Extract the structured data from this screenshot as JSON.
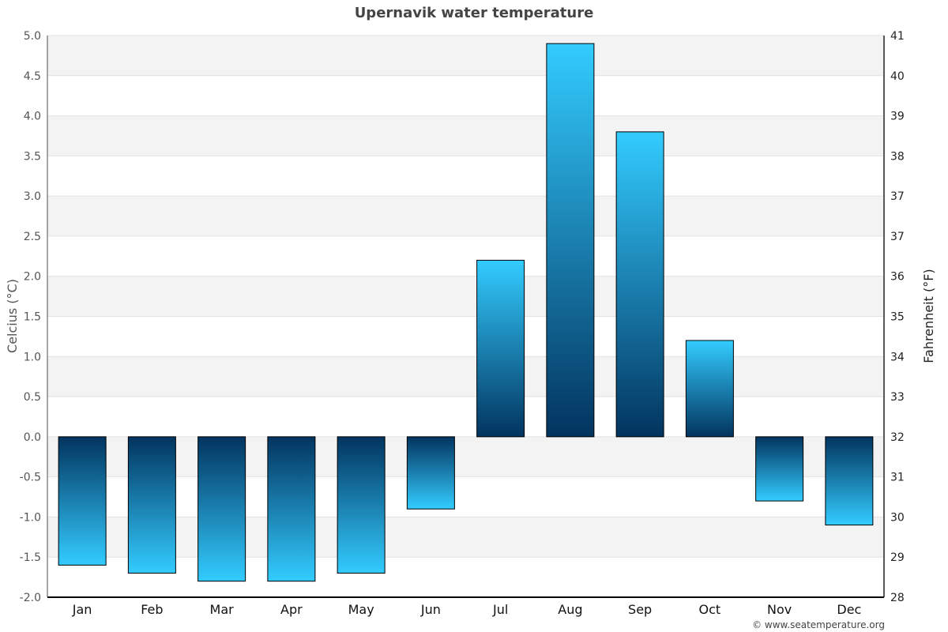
{
  "chart_data": {
    "type": "bar",
    "title": "Upernavik water temperature",
    "categories": [
      "Jan",
      "Feb",
      "Mar",
      "Apr",
      "May",
      "Jun",
      "Jul",
      "Aug",
      "Sep",
      "Oct",
      "Nov",
      "Dec"
    ],
    "values": [
      -1.6,
      -1.7,
      -1.8,
      -1.8,
      -1.7,
      -0.9,
      2.2,
      4.9,
      3.8,
      1.2,
      -0.8,
      -1.1
    ],
    "ylabel": "Celcius (°C)",
    "ylabel_right": "Fahrenheit (°F)",
    "ylim": [
      -2.0,
      5.0
    ],
    "yticks": [
      "5.0",
      "4.5",
      "4.0",
      "3.5",
      "3.0",
      "2.5",
      "2.0",
      "1.5",
      "1.0",
      "0.5",
      "0.0",
      "-0.5",
      "-1.0",
      "-1.5",
      "-2.0"
    ],
    "yticks_right": [
      "41",
      "40",
      "39",
      "38",
      "37",
      "37",
      "36",
      "35",
      "34",
      "33",
      "32",
      "31",
      "30",
      "29",
      "28"
    ],
    "grid": true,
    "bar_gradient": {
      "dark": "#02345f",
      "light": "#33ccff"
    },
    "band_color": "#f3f3f3"
  },
  "credit": "© www.seatemperature.org"
}
